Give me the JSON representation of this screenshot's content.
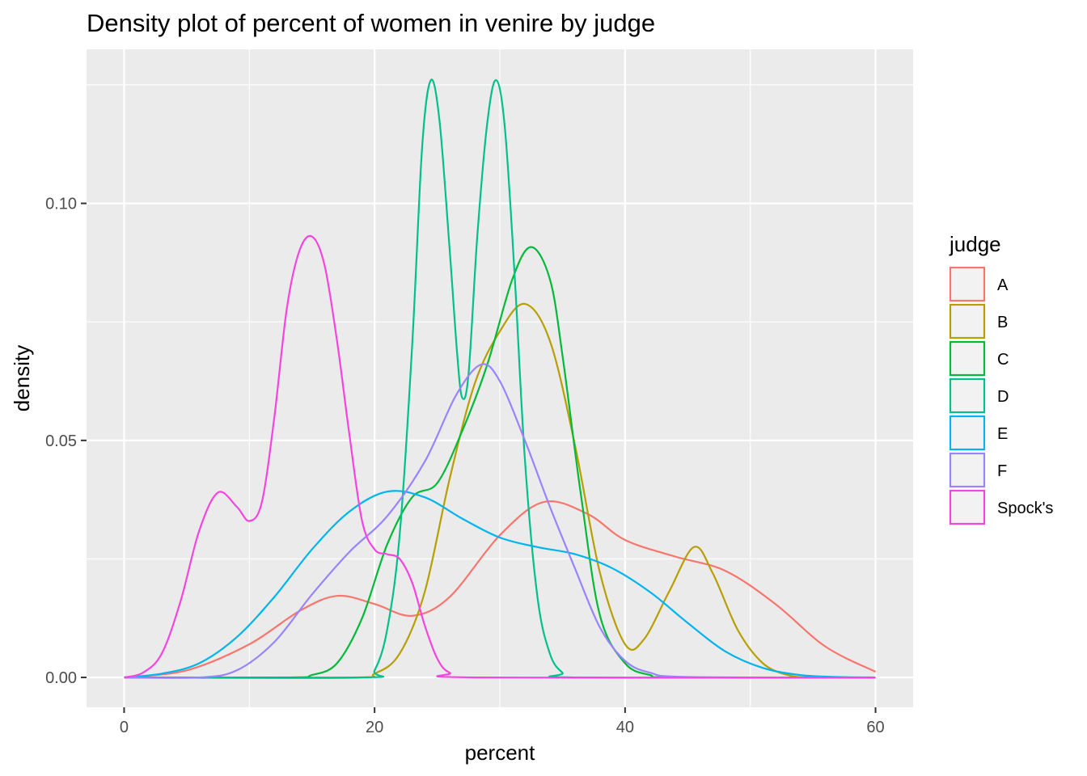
{
  "chart_data": {
    "type": "line",
    "title": "Density plot of percent of women in venire by judge",
    "xlabel": "percent",
    "ylabel": "density",
    "xlim": [
      -3,
      63
    ],
    "ylim": [
      -0.0063,
      0.1325
    ],
    "x_ticks": [
      0,
      20,
      40,
      60
    ],
    "x_tick_labels": [
      "0",
      "20",
      "40",
      "60"
    ],
    "y_ticks": [
      0,
      0.05,
      0.1
    ],
    "y_tick_labels": [
      "0.00",
      "0.05",
      "0.10"
    ],
    "grid": true,
    "legend": {
      "title": "judge",
      "position": "right"
    },
    "series": [
      {
        "name": "A",
        "color": "#F8766D",
        "points": [
          [
            0,
            0
          ],
          [
            5,
            0.0015
          ],
          [
            10,
            0.007
          ],
          [
            14,
            0.014
          ],
          [
            17,
            0.0172
          ],
          [
            20,
            0.0155
          ],
          [
            23,
            0.013
          ],
          [
            26,
            0.017
          ],
          [
            30,
            0.03
          ],
          [
            33.5,
            0.037
          ],
          [
            37,
            0.0345
          ],
          [
            40,
            0.029
          ],
          [
            44,
            0.0255
          ],
          [
            48,
            0.0225
          ],
          [
            52,
            0.0155
          ],
          [
            56,
            0.0065
          ],
          [
            60,
            0.0012
          ]
        ]
      },
      {
        "name": "B",
        "color": "#B79F00",
        "points": [
          [
            0,
            0
          ],
          [
            18,
            0
          ],
          [
            20,
            0.0008
          ],
          [
            22,
            0.005
          ],
          [
            24,
            0.018
          ],
          [
            26,
            0.042
          ],
          [
            28,
            0.062
          ],
          [
            30,
            0.073
          ],
          [
            32,
            0.0788
          ],
          [
            34,
            0.071
          ],
          [
            36,
            0.049
          ],
          [
            38,
            0.022
          ],
          [
            40,
            0.007
          ],
          [
            41.5,
            0.008
          ],
          [
            43.5,
            0.018
          ],
          [
            45.5,
            0.0275
          ],
          [
            47,
            0.022
          ],
          [
            49,
            0.01
          ],
          [
            51,
            0.003
          ],
          [
            53,
            0.0005
          ],
          [
            55,
            0
          ],
          [
            60,
            0
          ]
        ]
      },
      {
        "name": "C",
        "color": "#00BA38",
        "points": [
          [
            0,
            0
          ],
          [
            13,
            0
          ],
          [
            15,
            0.0005
          ],
          [
            17,
            0.003
          ],
          [
            19,
            0.0125
          ],
          [
            21,
            0.028
          ],
          [
            23,
            0.038
          ],
          [
            25,
            0.041
          ],
          [
            27,
            0.052
          ],
          [
            29,
            0.066
          ],
          [
            31,
            0.084
          ],
          [
            32.5,
            0.0908
          ],
          [
            34,
            0.084
          ],
          [
            35,
            0.068
          ],
          [
            36.5,
            0.038
          ],
          [
            38,
            0.013
          ],
          [
            40,
            0.003
          ],
          [
            42,
            0.0005
          ],
          [
            44,
            0
          ],
          [
            60,
            0
          ]
        ]
      },
      {
        "name": "D",
        "color": "#00C08B",
        "points": [
          [
            0,
            0
          ],
          [
            19,
            0
          ],
          [
            20,
            0.0015
          ],
          [
            21,
            0.01
          ],
          [
            22,
            0.03
          ],
          [
            23,
            0.07
          ],
          [
            23.8,
            0.112
          ],
          [
            24.5,
            0.126
          ],
          [
            25.2,
            0.117
          ],
          [
            26,
            0.09
          ],
          [
            26.6,
            0.068
          ],
          [
            27,
            0.059
          ],
          [
            27.5,
            0.064
          ],
          [
            28.2,
            0.093
          ],
          [
            29,
            0.117
          ],
          [
            29.7,
            0.126
          ],
          [
            30.4,
            0.116
          ],
          [
            31.2,
            0.084
          ],
          [
            32,
            0.046
          ],
          [
            33,
            0.017
          ],
          [
            34,
            0.005
          ],
          [
            35,
            0.001
          ],
          [
            36,
            0
          ],
          [
            60,
            0
          ]
        ]
      },
      {
        "name": "E",
        "color": "#00B4EF",
        "points": [
          [
            0,
            0
          ],
          [
            3,
            0.0008
          ],
          [
            6,
            0.003
          ],
          [
            9,
            0.0085
          ],
          [
            12,
            0.017
          ],
          [
            15,
            0.027
          ],
          [
            18,
            0.035
          ],
          [
            21,
            0.0392
          ],
          [
            24,
            0.038
          ],
          [
            27,
            0.0335
          ],
          [
            30,
            0.0295
          ],
          [
            33,
            0.0275
          ],
          [
            36,
            0.026
          ],
          [
            39,
            0.023
          ],
          [
            42,
            0.018
          ],
          [
            45,
            0.0115
          ],
          [
            48,
            0.0055
          ],
          [
            51,
            0.002
          ],
          [
            54,
            0.0005
          ],
          [
            57,
            0.0001
          ],
          [
            60,
            0
          ]
        ]
      },
      {
        "name": "F",
        "color": "#9A83FE",
        "points": [
          [
            0,
            0
          ],
          [
            6,
            0
          ],
          [
            9,
            0.0015
          ],
          [
            12,
            0.0075
          ],
          [
            15,
            0.0175
          ],
          [
            18,
            0.0265
          ],
          [
            21,
            0.034
          ],
          [
            24,
            0.0455
          ],
          [
            26.5,
            0.0595
          ],
          [
            28.5,
            0.066
          ],
          [
            30,
            0.0625
          ],
          [
            32,
            0.05
          ],
          [
            34,
            0.036
          ],
          [
            36,
            0.023
          ],
          [
            38,
            0.0105
          ],
          [
            40,
            0.0035
          ],
          [
            42,
            0.001
          ],
          [
            45,
            0.0001
          ],
          [
            60,
            0
          ]
        ]
      },
      {
        "name": "Spock's",
        "color": "#F544E0",
        "points": [
          [
            0,
            0
          ],
          [
            1.5,
            0.001
          ],
          [
            3,
            0.005
          ],
          [
            4.5,
            0.016
          ],
          [
            6,
            0.031
          ],
          [
            7.5,
            0.039
          ],
          [
            9,
            0.036
          ],
          [
            10,
            0.033
          ],
          [
            11,
            0.037
          ],
          [
            12,
            0.055
          ],
          [
            13,
            0.078
          ],
          [
            14,
            0.09
          ],
          [
            15,
            0.093
          ],
          [
            16,
            0.087
          ],
          [
            17,
            0.071
          ],
          [
            18,
            0.051
          ],
          [
            19,
            0.033
          ],
          [
            20,
            0.027
          ],
          [
            21,
            0.026
          ],
          [
            22,
            0.025
          ],
          [
            23,
            0.02
          ],
          [
            24,
            0.011
          ],
          [
            25,
            0.004
          ],
          [
            26,
            0.001
          ],
          [
            28,
            0
          ],
          [
            60,
            0
          ]
        ]
      }
    ]
  }
}
